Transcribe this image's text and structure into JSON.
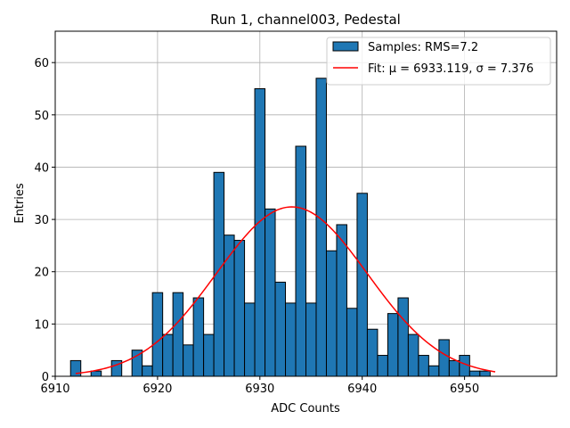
{
  "chart_data": {
    "type": "bar",
    "title": "Run 1, channel003, Pedestal",
    "xlabel": "ADC Counts",
    "ylabel": "Entries",
    "xlim": [
      6910,
      6959
    ],
    "ylim": [
      0,
      66
    ],
    "xticks": [
      6910,
      6920,
      6930,
      6940,
      6950
    ],
    "yticks": [
      0,
      10,
      20,
      30,
      40,
      50,
      60
    ],
    "grid": true,
    "bin_width": 1,
    "bin_centers": [
      6912,
      6913,
      6914,
      6915,
      6916,
      6917,
      6918,
      6919,
      6920,
      6921,
      6922,
      6923,
      6924,
      6925,
      6926,
      6927,
      6928,
      6929,
      6930,
      6931,
      6932,
      6933,
      6934,
      6935,
      6936,
      6937,
      6938,
      6939,
      6940,
      6941,
      6942,
      6943,
      6944,
      6945,
      6946,
      6947,
      6948,
      6949,
      6950,
      6951,
      6952
    ],
    "counts": [
      3,
      0,
      1,
      0,
      3,
      0,
      5,
      2,
      16,
      8,
      16,
      6,
      15,
      8,
      39,
      27,
      26,
      14,
      55,
      32,
      18,
      14,
      44,
      14,
      57,
      24,
      29,
      13,
      35,
      9,
      4,
      12,
      15,
      8,
      4,
      2,
      7,
      3,
      4,
      1,
      1
    ],
    "fit": {
      "mu": 6933.119,
      "sigma": 7.376,
      "amplitude": 32.4,
      "x_range": [
        6912,
        6953
      ]
    },
    "legend": {
      "position": "top-right",
      "entries": [
        {
          "label": "Samples: RMS=7.2",
          "kind": "bar",
          "color": "#1f77b4"
        },
        {
          "label": "Fit: μ = 6933.119, σ = 7.376",
          "kind": "line",
          "color": "#ff0000"
        }
      ]
    },
    "bar_color": "#1f77b4",
    "fit_color": "#ff0000"
  }
}
